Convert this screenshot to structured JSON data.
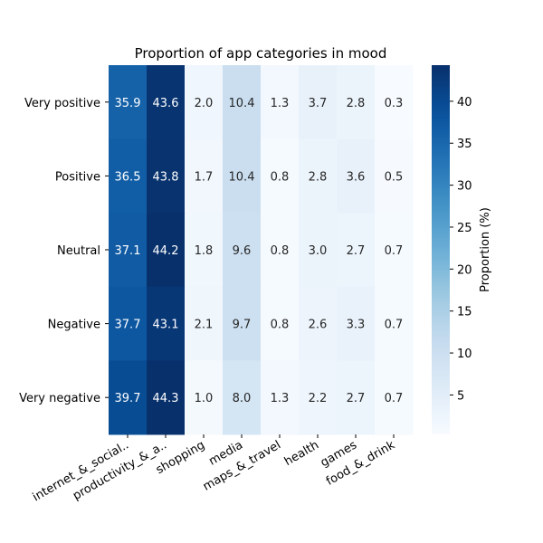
{
  "chart_data": {
    "type": "heatmap",
    "title": "Proportion of app categories in mood",
    "xlabel": "",
    "ylabel": "",
    "x_categories": [
      "internet_&_social..",
      "productivity_&_a..",
      "shopping",
      "media",
      "maps_&_travel",
      "health",
      "games",
      "food_&_drink"
    ],
    "y_categories": [
      "Very positive",
      "Positive",
      "Neutral",
      "Negative",
      "Very negative"
    ],
    "values": [
      [
        35.9,
        43.6,
        2.0,
        10.4,
        1.3,
        3.7,
        2.8,
        0.3
      ],
      [
        36.5,
        43.8,
        1.7,
        10.4,
        0.8,
        2.8,
        3.6,
        0.5
      ],
      [
        37.1,
        44.2,
        1.8,
        9.6,
        0.8,
        3.0,
        2.7,
        0.7
      ],
      [
        37.7,
        43.1,
        2.1,
        9.7,
        0.8,
        2.6,
        3.3,
        0.7
      ],
      [
        39.7,
        44.3,
        1.0,
        8.0,
        1.3,
        2.2,
        2.7,
        0.7
      ]
    ],
    "value_labels": [
      [
        "35.9",
        "43.6",
        "2.0",
        "10.4",
        "1.3",
        "3.7",
        "2.8",
        "0.3"
      ],
      [
        "36.5",
        "43.8",
        "1.7",
        "10.4",
        "0.8",
        "2.8",
        "3.6",
        "0.5"
      ],
      [
        "37.1",
        "44.2",
        "1.8",
        "9.6",
        "0.8",
        "3.0",
        "2.7",
        "0.7"
      ],
      [
        "37.7",
        "43.1",
        "2.1",
        "9.7",
        "0.8",
        "2.6",
        "3.3",
        "0.7"
      ],
      [
        "39.7",
        "44.3",
        "1.0",
        "8.0",
        "1.3",
        "2.2",
        "2.7",
        "0.7"
      ]
    ],
    "colorscale": "Blues",
    "vmin": 0.3,
    "vmax": 44.3,
    "colorbar": {
      "label": "Proportion (%)",
      "ticks": [
        5,
        10,
        15,
        20,
        25,
        30,
        35,
        40
      ],
      "tick_labels": [
        "5",
        "10",
        "15",
        "20",
        "25",
        "30",
        "35",
        "40"
      ]
    }
  }
}
